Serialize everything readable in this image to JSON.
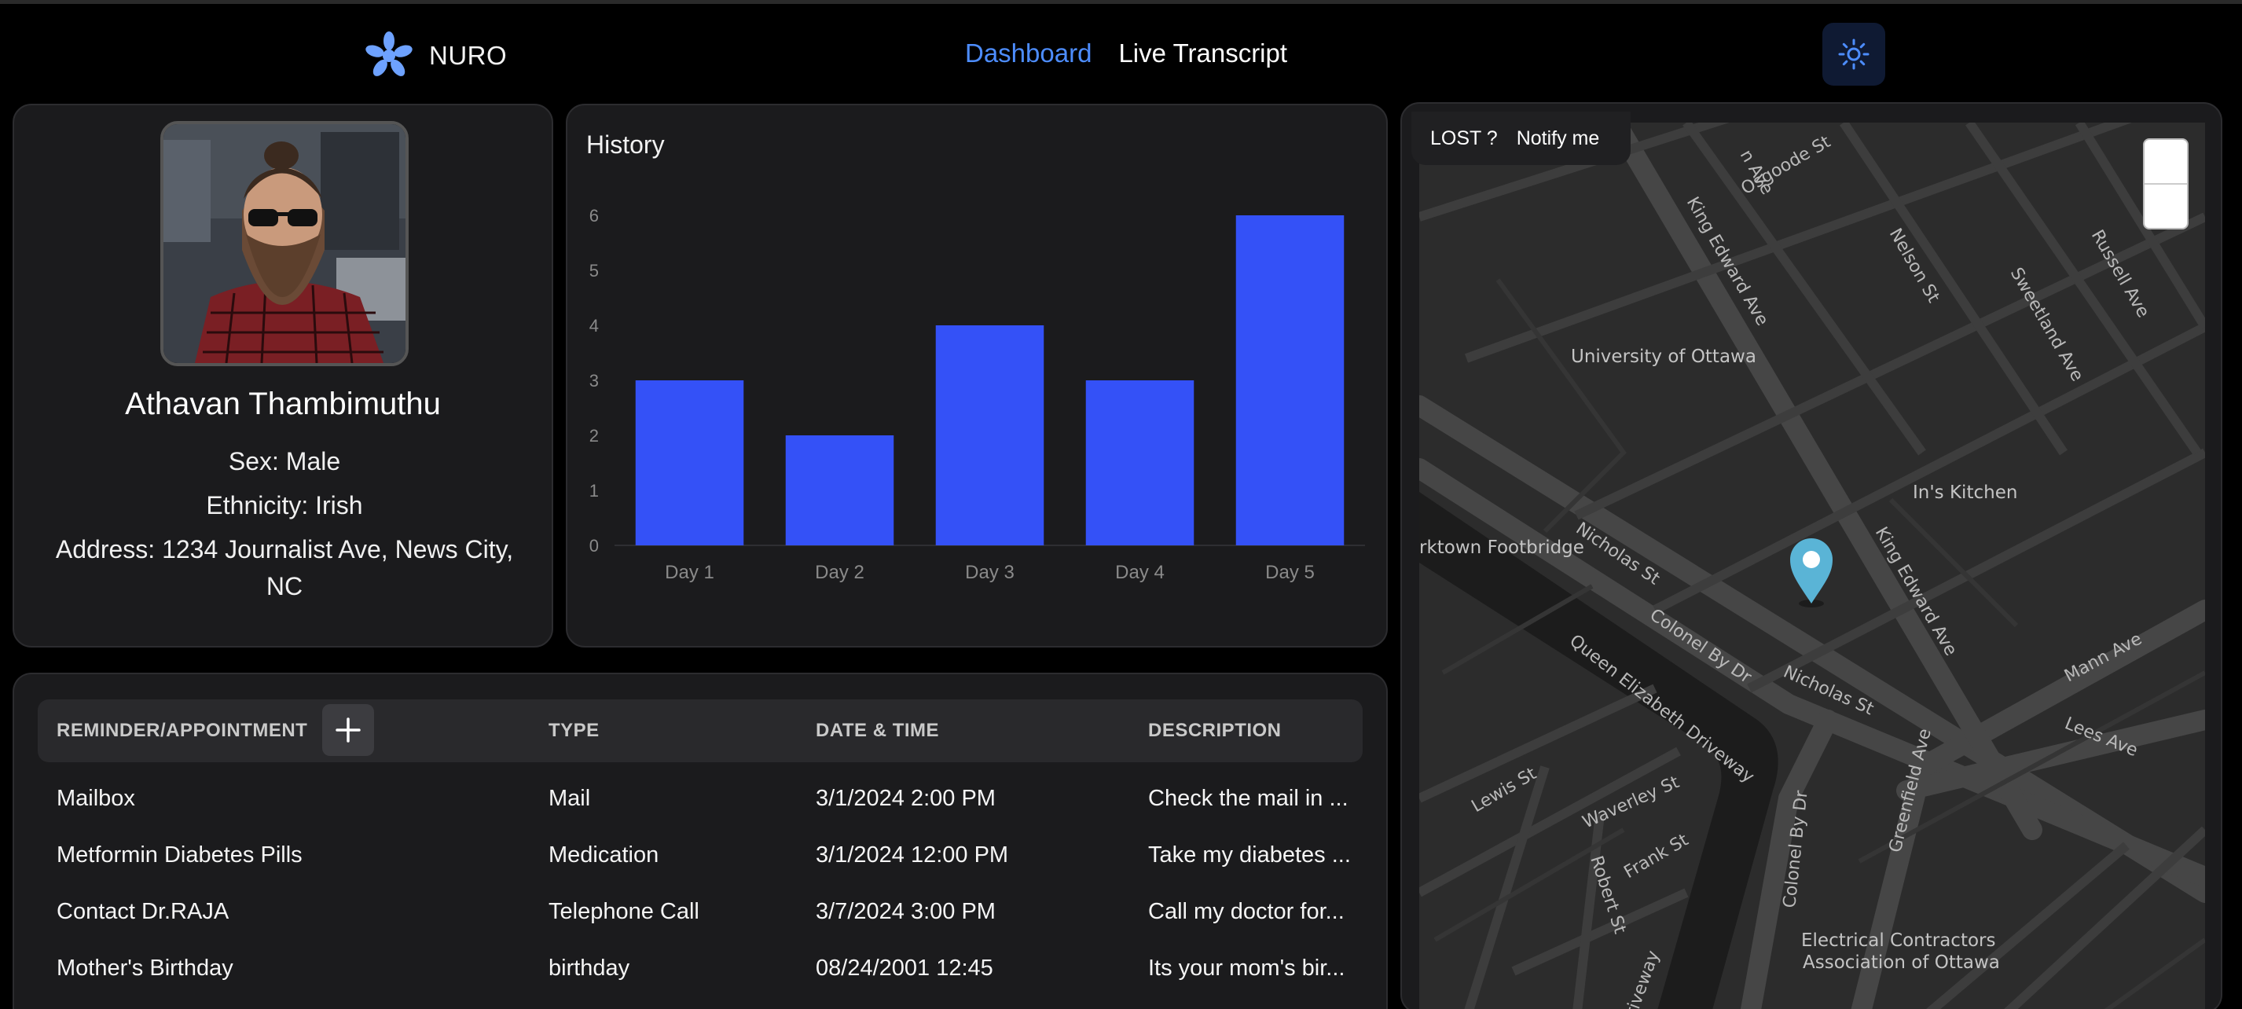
{
  "nav": {
    "brand": "NURO",
    "links": [
      {
        "label": "Dashboard",
        "active": true
      },
      {
        "label": "Live Transcript",
        "active": false
      }
    ],
    "theme_icon": "sun-icon",
    "accent_color": "#4d8dff"
  },
  "profile": {
    "name": "Athavan Thambimuthu",
    "sex": "Sex: Male",
    "ethnicity": "Ethnicity: Irish",
    "address_line1": "Address: 1234 Journalist Ave, News City,",
    "address_line2": "NC"
  },
  "history": {
    "title": "History"
  },
  "chart_data": {
    "type": "bar",
    "title": "History",
    "categories": [
      "Day 1",
      "Day 2",
      "Day 3",
      "Day 4",
      "Day 5"
    ],
    "values": [
      3,
      2,
      4,
      3,
      6
    ],
    "yticks": [
      "0",
      "1",
      "2",
      "3",
      "4",
      "5",
      "6"
    ],
    "ylim": [
      0,
      6
    ],
    "bar_color": "#3451f7",
    "grid": false
  },
  "table": {
    "headers": [
      "REMINDER/APPOINTMENT",
      "TYPE",
      "DATE & TIME",
      "DESCRIPTION"
    ],
    "rows": [
      {
        "name": "Mailbox",
        "type": "Mail",
        "datetime": "3/1/2024 2:00 PM",
        "description": "Check the mail in ..."
      },
      {
        "name": "Metformin Diabetes Pills",
        "type": "Medication",
        "datetime": "3/1/2024 12:00 PM",
        "description": "Take my diabetes ..."
      },
      {
        "name": "Contact Dr.RAJA",
        "type": "Telephone Call",
        "datetime": "3/7/2024 3:00 PM",
        "description": "Call my doctor for..."
      },
      {
        "name": "Mother's Birthday",
        "type": "birthday",
        "datetime": "08/24/2001 12:45",
        "description": "Its your mom's bir..."
      }
    ]
  },
  "map": {
    "lost_label": "LOST ?",
    "notify_label": "Notify me",
    "labels": {
      "university": "University of Ottawa",
      "kitchen": "In's Kitchen",
      "footbridge": "rktown Footbridge",
      "electrical1": "Electrical Contractors",
      "electrical2": "Association of Ottawa",
      "king_edward": "King Edward Ave",
      "osgoode": "Osgoode St",
      "nelson": "Nelson St",
      "sweetland": "Sweetland Ave",
      "russell": "Russell Ave",
      "nicholas": "Nicholas St",
      "colonel_by": "Colonel By Dr",
      "queen_elizabeth": "Queen Elizabeth Driveway",
      "lewis": "Lewis St",
      "waverley": "Waverley St",
      "frank": "Frank St",
      "robert": "Robert St",
      "greenfield": "Greenfield Ave",
      "mann": "Mann Ave",
      "lees": "Lees Ave",
      "n_ave": "n Ave",
      "riveway": "riveway"
    }
  }
}
